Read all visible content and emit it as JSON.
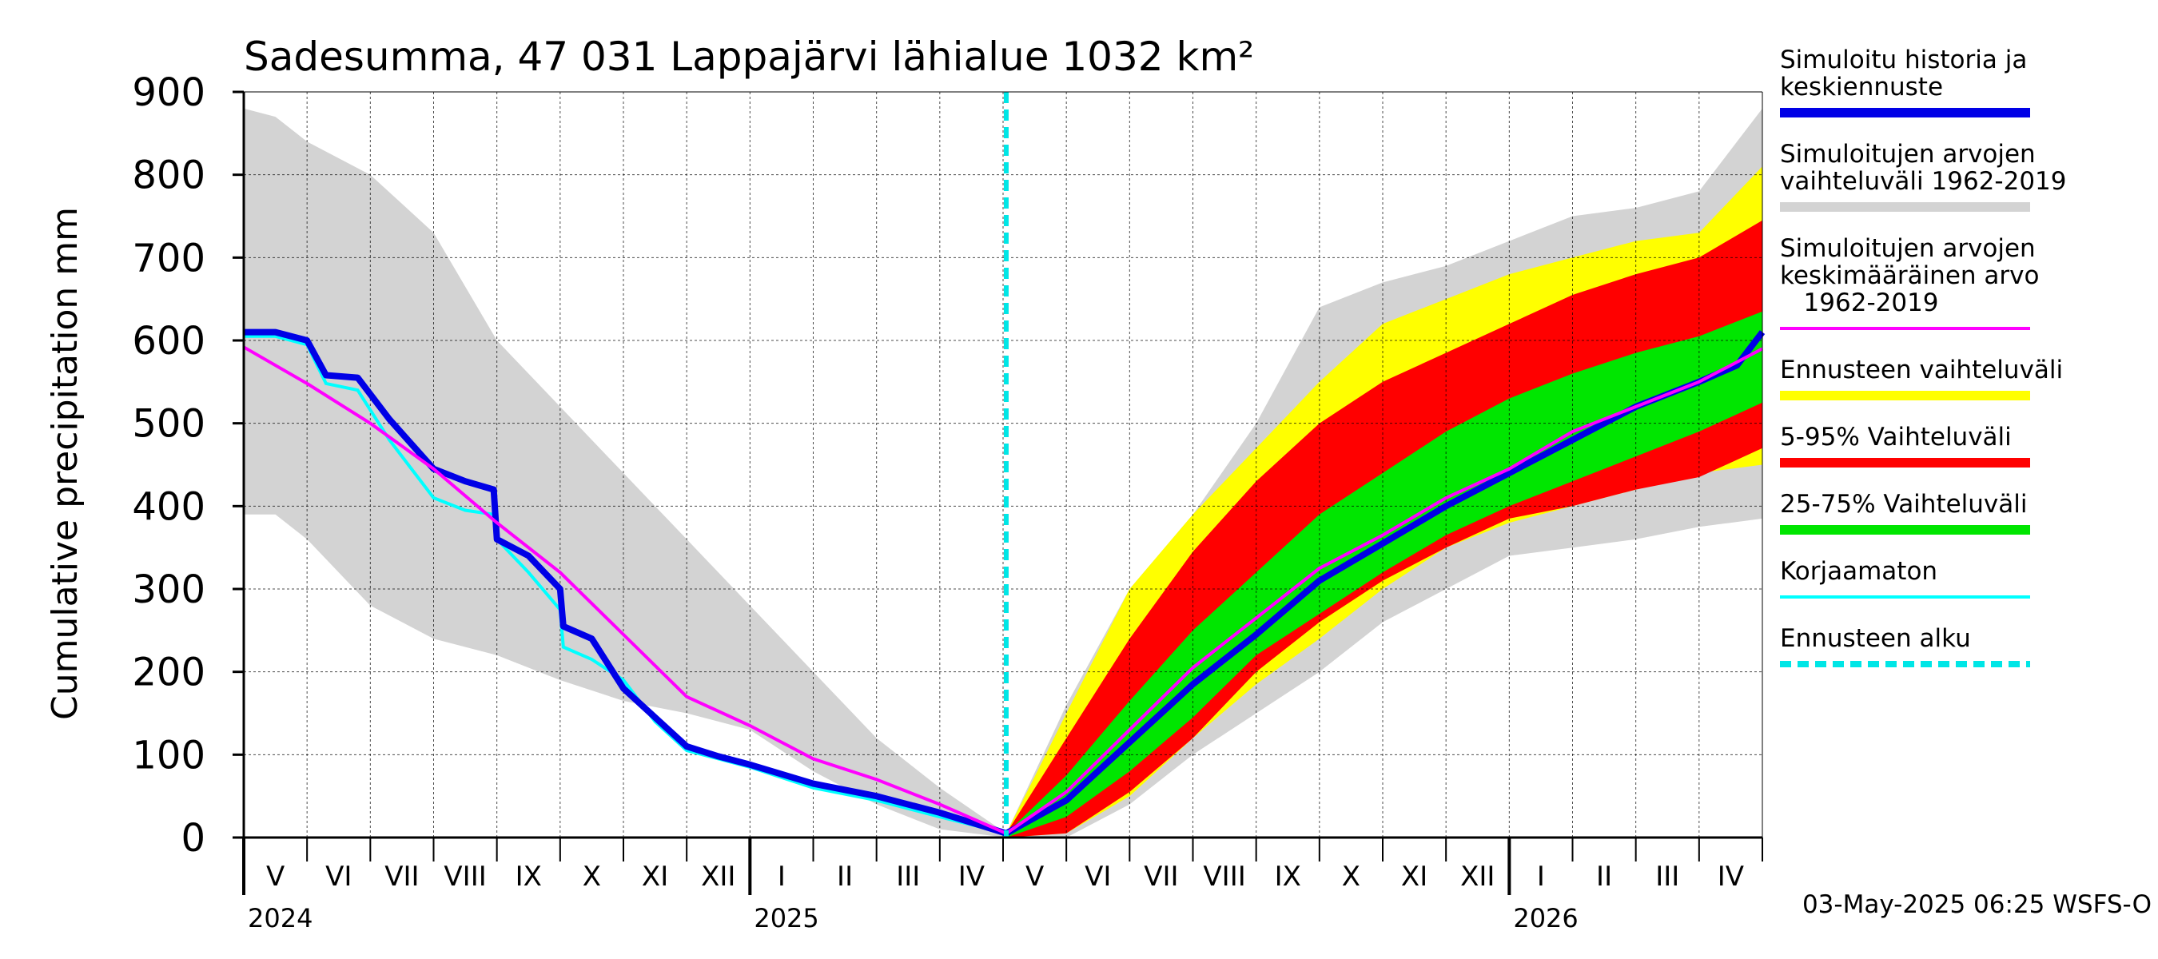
{
  "chart_data": {
    "type": "area",
    "title": "Sadesumma, 47 031 Lappajärvi lähialue 1032 km²",
    "ylabel": "Cumulative precipitation   mm",
    "xlabel": "",
    "ylim": [
      0,
      900
    ],
    "yticks": [
      "0",
      "100",
      "200",
      "300",
      "400",
      "500",
      "600",
      "700",
      "800",
      "900"
    ],
    "x_unit": "months since 1 May 2024 (0 = 1 May 2024, 12 = 1 May 2025, 24 = 1 May 2026)",
    "xlim": [
      0,
      24
    ],
    "months": [
      "V",
      "VI",
      "VII",
      "VIII",
      "IX",
      "X",
      "XI",
      "XII",
      "I",
      "II",
      "III",
      "IV",
      "V",
      "VI",
      "VII",
      "VIII",
      "IX",
      "X",
      "XI",
      "XII",
      "I",
      "II",
      "III",
      "IV"
    ],
    "years": [
      {
        "label": "2024",
        "month": 0
      },
      {
        "label": "2025",
        "month": 8
      },
      {
        "label": "2026",
        "month": 20
      }
    ],
    "forecast_start": 12.05,
    "timestamp": "03-May-2025 06:25 WSFS-O",
    "colors": {
      "history": "#0000e6",
      "range": "#d3d3d3",
      "mean": "#ff00ff",
      "forecast_range": "#ffff00",
      "p5_95": "#ff0000",
      "p25_75": "#00e600",
      "uncorrected": "#00ffff",
      "forecast_start": "#00e6e6"
    },
    "legend": [
      {
        "label": [
          "Simuloitu historia ja",
          "keskiennuste"
        ],
        "color": "#0000e6",
        "style": "thick"
      },
      {
        "label": [
          "Simuloitujen arvojen",
          "vaihteluväli 1962-2019"
        ],
        "color": "#d3d3d3",
        "style": "thick"
      },
      {
        "label": [
          "Simuloitujen arvojen",
          "keskimääräinen arvo",
          "   1962-2019"
        ],
        "color": "#ff00ff",
        "style": "thin"
      },
      {
        "label": [
          "Ennusteen vaihteluväli"
        ],
        "color": "#ffff00",
        "style": "thick"
      },
      {
        "label": [
          "5-95% Vaihteluväli"
        ],
        "color": "#ff0000",
        "style": "thick"
      },
      {
        "label": [
          "25-75% Vaihteluväli"
        ],
        "color": "#00e600",
        "style": "thick"
      },
      {
        "label": [
          "Korjaamaton"
        ],
        "color": "#00ffff",
        "style": "thin"
      },
      {
        "label": [
          "Ennusteen alku"
        ],
        "color": "#00e6e6",
        "style": "dashed"
      }
    ],
    "series": [
      {
        "name": "Simuloitu historia ja keskiennuste",
        "x": [
          0,
          0.5,
          1,
          1.3,
          1.8,
          2.3,
          3,
          3.5,
          3.95,
          4.0,
          4.5,
          5.0,
          5.05,
          5.5,
          6.0,
          6.5,
          7,
          7.5,
          8,
          9,
          10,
          11,
          12.05,
          13,
          14,
          15,
          16,
          17,
          18,
          19,
          20,
          21,
          22,
          23,
          23.6,
          24
        ],
        "y": [
          610,
          610,
          600,
          558,
          555,
          505,
          445,
          430,
          420,
          360,
          340,
          300,
          255,
          240,
          180,
          145,
          110,
          98,
          88,
          65,
          50,
          30,
          5,
          45,
          115,
          185,
          245,
          310,
          355,
          400,
          440,
          480,
          520,
          550,
          570,
          610
        ]
      },
      {
        "name": "Korjaamaton",
        "x": [
          0,
          0.5,
          1,
          1.3,
          1.8,
          2.3,
          3,
          3.5,
          3.95,
          4.0,
          4.5,
          5.0,
          5.05,
          5.5,
          6.0,
          6.5,
          7,
          7.5,
          8,
          9,
          10,
          11,
          12.05
        ],
        "y": [
          605,
          605,
          595,
          548,
          540,
          480,
          410,
          395,
          390,
          360,
          320,
          275,
          230,
          215,
          190,
          140,
          105,
          95,
          85,
          60,
          45,
          25,
          5
        ]
      },
      {
        "name": "Simuloitujen arvojen keskimääräinen arvo 1962-2019",
        "x": [
          0,
          1,
          2,
          3,
          4,
          5,
          6,
          7,
          8,
          9,
          10,
          11,
          12.05,
          13,
          14,
          15,
          16,
          17,
          18,
          19,
          20,
          21,
          22,
          23,
          24
        ],
        "y": [
          592,
          548,
          500,
          445,
          380,
          320,
          245,
          170,
          135,
          95,
          70,
          40,
          5,
          55,
          130,
          205,
          265,
          325,
          365,
          410,
          445,
          490,
          520,
          550,
          590
        ]
      },
      {
        "name": "Simuloitujen arvojen vaihteluväli 1962-2019",
        "x": [
          0,
          0.5,
          1,
          2,
          3,
          4,
          5,
          6,
          7,
          8,
          9,
          10,
          11,
          12.05,
          13,
          14,
          15,
          16,
          17,
          18,
          19,
          20,
          21,
          22,
          23,
          24
        ],
        "upper": [
          880,
          870,
          840,
          800,
          730,
          600,
          520,
          440,
          360,
          280,
          200,
          120,
          60,
          5,
          160,
          300,
          390,
          500,
          640,
          670,
          690,
          720,
          750,
          760,
          780,
          880
        ],
        "lower": [
          390,
          390,
          360,
          280,
          240,
          220,
          190,
          165,
          150,
          130,
          80,
          40,
          10,
          0,
          0,
          40,
          100,
          150,
          200,
          260,
          300,
          340,
          350,
          360,
          375,
          385
        ]
      },
      {
        "name": "Ennusteen vaihteluväli",
        "x": [
          12.05,
          13,
          14,
          15,
          16,
          17,
          18,
          19,
          20,
          21,
          22,
          23,
          24
        ],
        "upper": [
          5,
          150,
          300,
          390,
          470,
          550,
          620,
          650,
          680,
          700,
          720,
          730,
          810
        ],
        "lower": [
          0,
          5,
          50,
          120,
          185,
          240,
          300,
          350,
          380,
          400,
          420,
          440,
          450
        ]
      },
      {
        "name": "5-95% Vaihteluväli",
        "x": [
          12.05,
          13,
          14,
          15,
          16,
          17,
          18,
          19,
          20,
          21,
          22,
          23,
          24
        ],
        "upper": [
          5,
          120,
          240,
          345,
          430,
          500,
          550,
          585,
          620,
          655,
          680,
          700,
          745
        ],
        "lower": [
          0,
          5,
          55,
          120,
          200,
          260,
          310,
          350,
          385,
          400,
          420,
          435,
          470
        ]
      },
      {
        "name": "25-75% Vaihteluväli",
        "x": [
          12.05,
          13,
          14,
          15,
          16,
          17,
          18,
          19,
          20,
          21,
          22,
          23,
          24
        ],
        "upper": [
          5,
          75,
          165,
          250,
          320,
          390,
          440,
          490,
          530,
          560,
          585,
          605,
          635
        ],
        "lower": [
          0,
          25,
          80,
          145,
          220,
          270,
          320,
          365,
          400,
          430,
          460,
          490,
          525
        ]
      }
    ]
  }
}
